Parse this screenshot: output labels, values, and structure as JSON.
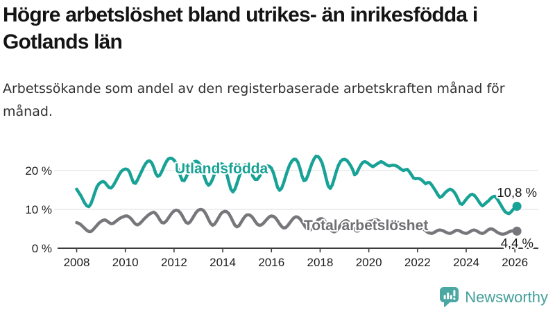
{
  "header": {
    "title": "Högre arbetslöshet bland utrikes- än inrikesfödda i Gotlands län",
    "subtitle": "Arbetssökande som andel av den registerbaserade arbetskraften månad för månad."
  },
  "chart_data": {
    "type": "line",
    "title": "Högre arbetslöshet bland utrikes- än inrikesfödda i Gotlands län",
    "x_start": {
      "year": 2008,
      "month": 1
    },
    "x_end": {
      "year": 2026,
      "month": 2
    },
    "x_tick_labels": [
      "2008",
      "2010",
      "2012",
      "2014",
      "2016",
      "2018",
      "2020",
      "2022",
      "2024",
      "2026"
    ],
    "y_ticks": [
      0,
      10,
      20
    ],
    "y_tick_labels": [
      "0 %",
      "10 %",
      "20 %"
    ],
    "ylim": [
      0,
      25
    ],
    "grid": "horizontal",
    "legend_position": "inline-labels",
    "colors": {
      "grid": "#e3e3e3",
      "axis": "#3c3c3c",
      "value_text": "#191919"
    },
    "series": [
      {
        "name": "Utlandsfödda",
        "color": "#18a296",
        "end_label": "10,8 %",
        "end_value": 10.8,
        "values": [
          15.2,
          14.4,
          13.6,
          12.6,
          11.6,
          10.9,
          10.7,
          11.4,
          12.8,
          14.4,
          15.8,
          16.6,
          17.0,
          17.2,
          16.9,
          16.2,
          15.6,
          15.5,
          16.1,
          17.0,
          18.0,
          19.0,
          19.8,
          20.2,
          20.4,
          20.3,
          19.7,
          18.2,
          16.9,
          16.7,
          17.6,
          18.7,
          19.8,
          20.9,
          21.8,
          22.4,
          22.5,
          22.0,
          20.8,
          19.2,
          18.5,
          18.8,
          19.8,
          21.0,
          22.1,
          22.9,
          23.2,
          23.1,
          22.7,
          21.9,
          20.5,
          18.8,
          17.5,
          17.4,
          18.3,
          19.5,
          20.7,
          21.7,
          22.3,
          22.4,
          22.1,
          21.3,
          20.0,
          18.3,
          16.9,
          16.2,
          16.7,
          17.8,
          19.2,
          20.5,
          21.4,
          21.8,
          21.6,
          20.7,
          19.1,
          17.0,
          15.2,
          14.5,
          15.2,
          16.7,
          18.3,
          19.8,
          20.9,
          21.5,
          21.4,
          20.7,
          19.6,
          18.4,
          17.7,
          17.7,
          18.4,
          19.4,
          20.3,
          20.9,
          21.2,
          21.1,
          20.6,
          19.4,
          17.6,
          15.7,
          14.9,
          15.4,
          16.8,
          18.5,
          20.1,
          21.5,
          22.4,
          22.9,
          22.9,
          22.2,
          20.7,
          18.7,
          17.4,
          17.6,
          18.8,
          20.4,
          21.9,
          23.0,
          23.7,
          23.6,
          23.0,
          21.9,
          20.1,
          17.9,
          16.0,
          15.4,
          16.3,
          18.0,
          19.8,
          21.3,
          22.3,
          22.8,
          22.9,
          22.7,
          22.1,
          21.3,
          20.3,
          18.9,
          19.3,
          20.4,
          21.4,
          22.1,
          22.3,
          22.1,
          21.7,
          21.3,
          21.0,
          21.3,
          21.7,
          22.0,
          22.3,
          22.1,
          21.7,
          21.4,
          21.2,
          21.3,
          21.4,
          21.3,
          21.1,
          20.7,
          20.3,
          20.0,
          20.2,
          20.3,
          19.7,
          18.9,
          18.1,
          17.9,
          18.0,
          17.9,
          17.6,
          17.1,
          16.6,
          16.9,
          16.9,
          16.3,
          15.5,
          14.7,
          13.8,
          13.1,
          13.3,
          13.9,
          14.5,
          14.9,
          15.2,
          15.0,
          14.5,
          13.7,
          12.6,
          11.5,
          11.3,
          11.9,
          12.6,
          13.2,
          13.7,
          13.9,
          13.6,
          13.0,
          12.2,
          11.4,
          10.9,
          11.3,
          11.8,
          12.2,
          12.8,
          13.2,
          13.4,
          12.9,
          12.1,
          11.2,
          10.3,
          9.5,
          9.1,
          8.9,
          9.3,
          9.9,
          10.5,
          10.8
        ]
      },
      {
        "name": "Total arbetslöshet",
        "color": "#77777b",
        "end_label": "4,4 %",
        "end_value": 4.4,
        "values": [
          6.6,
          6.4,
          6.1,
          5.6,
          5.1,
          4.6,
          4.3,
          4.3,
          4.7,
          5.3,
          5.9,
          6.5,
          6.9,
          7.2,
          7.3,
          7.0,
          6.6,
          6.3,
          6.4,
          6.8,
          7.2,
          7.6,
          7.9,
          8.1,
          8.3,
          8.3,
          8.0,
          7.5,
          6.8,
          6.2,
          6.0,
          6.3,
          6.8,
          7.4,
          7.9,
          8.4,
          8.8,
          9.1,
          9.3,
          8.9,
          8.2,
          7.3,
          6.6,
          6.5,
          6.9,
          7.6,
          8.4,
          9.1,
          9.6,
          9.8,
          9.7,
          9.2,
          8.4,
          7.4,
          6.6,
          6.4,
          6.8,
          7.6,
          8.5,
          9.3,
          9.8,
          10.0,
          9.9,
          9.4,
          8.5,
          7.4,
          6.4,
          5.9,
          6.2,
          7.0,
          7.9,
          8.8,
          9.3,
          9.5,
          9.4,
          8.9,
          8.0,
          6.9,
          5.9,
          5.5,
          5.8,
          6.6,
          7.5,
          8.2,
          8.6,
          8.6,
          8.3,
          7.7,
          6.9,
          6.2,
          5.9,
          6.0,
          6.4,
          7.0,
          7.6,
          8.1,
          8.3,
          8.2,
          7.8,
          7.1,
          6.3,
          5.6,
          5.2,
          5.3,
          5.8,
          6.5,
          7.2,
          7.8,
          8.1,
          8.0,
          7.6,
          6.9,
          6.1,
          5.3,
          4.8,
          4.7,
          5.1,
          5.8,
          6.6,
          7.3,
          7.6,
          7.6,
          7.2,
          6.5,
          5.7,
          4.9,
          4.4,
          4.2,
          4.5,
          5.1,
          5.9,
          6.6,
          7.0,
          7.1,
          6.8,
          6.2,
          5.5,
          4.8,
          4.4,
          4.5,
          4.9,
          5.5,
          6.1,
          6.6,
          6.9,
          7.0,
          7.1,
          7.3,
          7.3,
          7.0,
          6.6,
          6.3,
          6.2,
          6.3,
          6.5,
          6.7,
          6.9,
          6.9,
          6.7,
          6.4,
          6.0,
          5.6,
          5.3,
          5.2,
          5.3,
          5.5,
          5.4,
          5.2,
          5.3,
          5.4,
          5.2,
          4.9,
          4.5,
          4.1,
          3.9,
          3.8,
          4.0,
          4.3,
          4.6,
          4.7,
          4.6,
          4.4,
          4.1,
          3.9,
          3.8,
          4.0,
          4.3,
          4.6,
          4.6,
          4.4,
          4.1,
          3.9,
          3.8,
          4.0,
          4.3,
          4.6,
          4.7,
          4.5,
          4.2,
          3.9,
          3.8,
          4.0,
          4.4,
          4.8,
          5.0,
          4.9,
          4.6,
          4.2,
          3.9,
          3.7,
          3.6,
          3.7,
          3.9,
          4.2,
          4.4,
          4.5,
          4.3,
          4.4
        ]
      }
    ]
  },
  "footer": {
    "brand": "Newsworthy",
    "brand_color": "#43a09b",
    "icon_color": "#4ba7a1",
    "icon_name": "newsworthy-chart-bubble-icon"
  }
}
